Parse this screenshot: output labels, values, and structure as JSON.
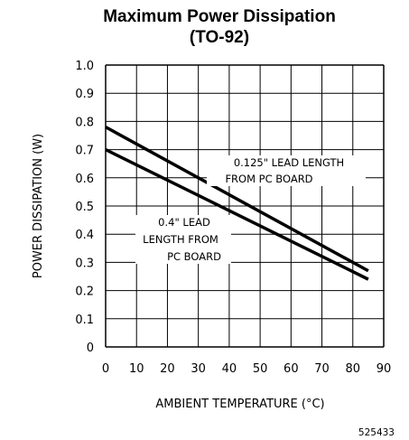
{
  "chart_data": {
    "type": "line",
    "title": "Maximum Power Dissipation",
    "subtitle": "(TO-92)",
    "xlabel": "AMBIENT TEMPERATURE (°C)",
    "ylabel": "POWER DISSIPATION (W)",
    "xlim": [
      0,
      90
    ],
    "ylim": [
      0,
      1.0
    ],
    "x_ticks": [
      "0",
      "10",
      "20",
      "30",
      "40",
      "50",
      "60",
      "70",
      "80",
      "90"
    ],
    "y_ticks": [
      "0",
      "0.1",
      "0.2",
      "0.3",
      "0.4",
      "0.5",
      "0.6",
      "0.7",
      "0.8",
      "0.9",
      "1.0"
    ],
    "grid": true,
    "series": [
      {
        "x": [
          0,
          85
        ],
        "y": [
          0.78,
          0.27
        ]
      },
      {
        "x": [
          0,
          85
        ],
        "y": [
          0.7,
          0.24
        ]
      }
    ],
    "annotations": [
      {
        "lines": [
          "0.125\" LEAD LENGTH",
          "FROM PC BOARD"
        ]
      },
      {
        "lines": [
          "0.4\" LEAD",
          "LENGTH FROM",
          "PC BOARD"
        ]
      }
    ],
    "figure_id": "525433"
  }
}
